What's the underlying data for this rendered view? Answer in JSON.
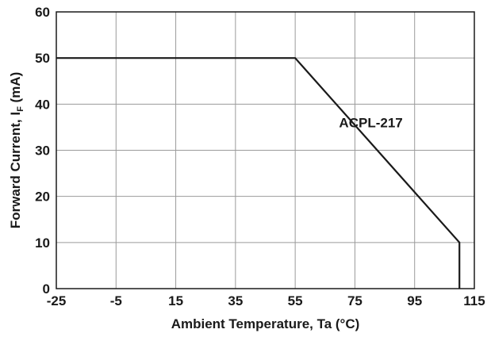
{
  "chart_data": {
    "type": "line",
    "xlabel": "Ambient Temperature, Ta (°C)",
    "ylabel_parts": {
      "pre": "Forward Current, I",
      "sub": "F",
      "post": " (mA)"
    },
    "xlim": [
      -25,
      115
    ],
    "ylim": [
      0,
      60
    ],
    "x_ticks": [
      -25,
      -5,
      15,
      35,
      55,
      75,
      95,
      115
    ],
    "x_tick_labels": [
      "-25",
      "-5",
      "15",
      "35",
      "55",
      "75",
      "95",
      "115"
    ],
    "y_ticks": [
      0,
      10,
      20,
      30,
      40,
      50,
      60
    ],
    "y_tick_labels": [
      "0",
      "10",
      "20",
      "30",
      "40",
      "50",
      "60"
    ],
    "grid": true,
    "series": [
      {
        "name": "ACPL-217",
        "x": [
          -25,
          55,
          110,
          110
        ],
        "y": [
          50,
          50,
          10,
          0
        ]
      }
    ],
    "annotations": [
      {
        "text": "ACPL-217",
        "x": 75,
        "y": 36
      }
    ]
  }
}
